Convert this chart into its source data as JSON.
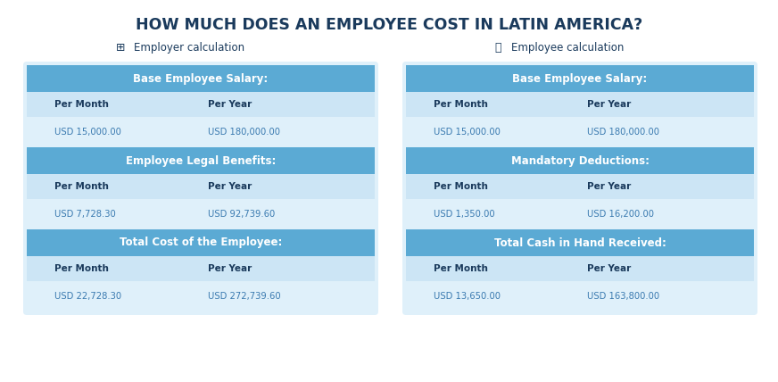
{
  "title": "HOW MUCH DOES AN EMPLOYEE COST IN LATIN AMERICA?",
  "title_color": "#1a3a5c",
  "title_fontsize": 12.5,
  "bg_color": "#ffffff",
  "header_dark": "#5baad4",
  "header_light": "#cce5f5",
  "row_light": "#dff0fa",
  "text_dark": "#1a3a5c",
  "text_mid": "#3a7ab0",
  "employer_label": "Employer calculation",
  "employee_label": "Employee calculation",
  "employer_sections": [
    {
      "header": "Base Employee Salary:",
      "per_month_val": "USD 15,000.00",
      "per_year_val": "USD 180,000.00"
    },
    {
      "header": "Employee Legal Benefits:",
      "per_month_val": "USD 7,728.30",
      "per_year_val": "USD 92,739.60"
    },
    {
      "header": "Total Cost of the Employee:",
      "per_month_val": "USD 22,728.30",
      "per_year_val": "USD 272,739.60"
    }
  ],
  "employee_sections": [
    {
      "header": "Base Employee Salary:",
      "per_month_val": "USD 15,000.00",
      "per_year_val": "USD 180,000.00"
    },
    {
      "header": "Mandatory Deductions:",
      "per_month_val": "USD 1,350.00",
      "per_year_val": "USD 16,200.00"
    },
    {
      "header": "Total Cash in Hand Received:",
      "per_month_val": "USD 13,650.00",
      "per_year_val": "USD 163,800.00"
    }
  ],
  "per_month_label": "Per Month",
  "per_year_label": "Per Year"
}
